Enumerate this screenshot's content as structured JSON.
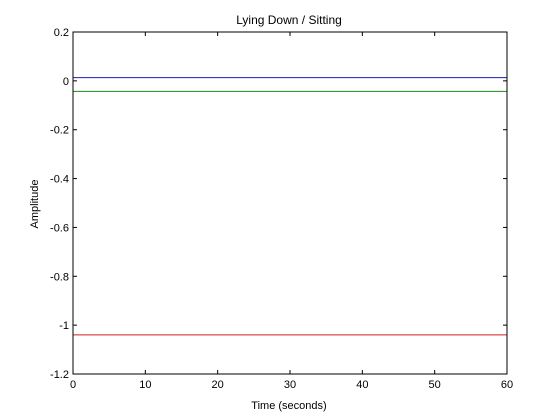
{
  "chart_data": {
    "type": "line",
    "title": "Lying Down / Sitting",
    "xlabel": "Time (seconds)",
    "ylabel": "Amplitude",
    "xlim": [
      0,
      60
    ],
    "ylim": [
      -1.2,
      0.2
    ],
    "xticks": [
      0,
      10,
      20,
      30,
      40,
      50,
      60
    ],
    "xtick_labels": [
      "0",
      "10",
      "20",
      "30",
      "40",
      "50",
      "60"
    ],
    "yticks": [
      0.2,
      0,
      -0.2,
      -0.4,
      -0.6,
      -0.8,
      -1,
      -1.2
    ],
    "ytick_labels": [
      "0.2",
      "0",
      "-0.2",
      "-0.4",
      "-0.6",
      "-0.8",
      "-1",
      "-1.2"
    ],
    "grid": false,
    "series": [
      {
        "x": [
          0,
          60
        ],
        "values": [
          0.013,
          0.013
        ],
        "color": "#1f1fa8"
      },
      {
        "x": [
          0,
          60
        ],
        "values": [
          -0.043,
          -0.043
        ],
        "color": "#1a8a1a"
      },
      {
        "x": [
          0,
          60
        ],
        "values": [
          -1.04,
          -1.04
        ],
        "color": "#cc2020"
      }
    ]
  }
}
